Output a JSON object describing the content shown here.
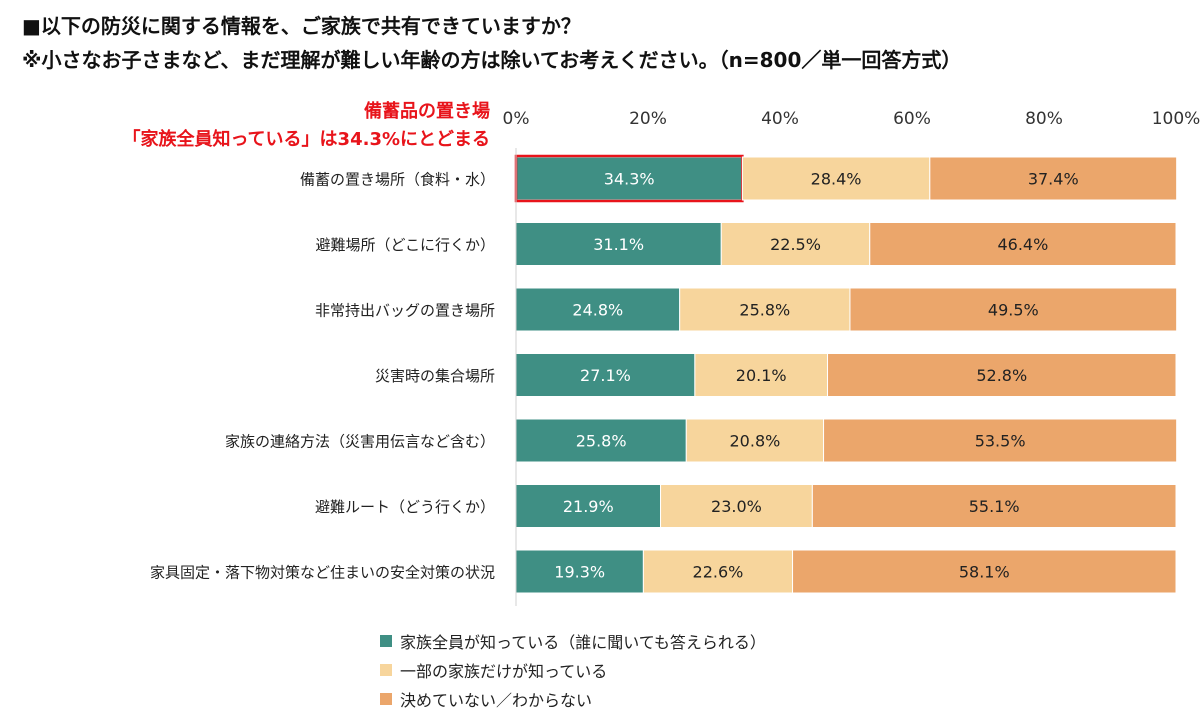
{
  "title_line1": "■以下の防災に関する情報を、ご家族で共有できていますか？",
  "title_line2": "※小さなお子さまなど、まだ理解が難しい年齢の方は除いてお考えください。（n=800／単一回答方式）",
  "annotation_line1": "備蓄品の置き場",
  "annotation_line2": "「家族全員知っている」は34.3%にとどまる",
  "chart_data": {
    "type": "bar",
    "orientation": "horizontal",
    "stacked": true,
    "percent": true,
    "xlim": [
      0,
      100
    ],
    "ticks": [
      "0%",
      "20%",
      "40%",
      "60%",
      "80%",
      "100%"
    ],
    "tick_values": [
      0,
      20,
      40,
      60,
      80,
      100
    ],
    "legend_position": "bottom",
    "highlight": {
      "category_index": 0,
      "series_index": 0,
      "color": "#e8141b"
    },
    "categories": [
      "備蓄の置き場所（食料・水）",
      "避難場所（どこに行くか）",
      "非常持出バッグの置き場所",
      "災害時の集合場所",
      "家族の連絡方法（災害用伝言など含む）",
      "避難ルート（どう行くか）",
      "家具固定・落下物対策など住まいの安全対策の状況"
    ],
    "series": [
      {
        "name": "家族全員が知っている（誰に聞いても答えられる）",
        "color": "#3f8f84",
        "label_color": "#ffffff",
        "values": [
          34.3,
          31.1,
          24.8,
          27.1,
          25.8,
          21.9,
          19.3
        ]
      },
      {
        "name": "一部の家族だけが知っている",
        "color": "#f7d59c",
        "label_color": "#222222",
        "values": [
          28.4,
          22.5,
          25.8,
          20.1,
          20.8,
          23.0,
          22.6
        ]
      },
      {
        "name": "決めていない／わからない",
        "color": "#eba66b",
        "label_color": "#222222",
        "values": [
          37.4,
          46.4,
          49.5,
          52.8,
          53.5,
          55.1,
          58.1
        ]
      }
    ]
  }
}
